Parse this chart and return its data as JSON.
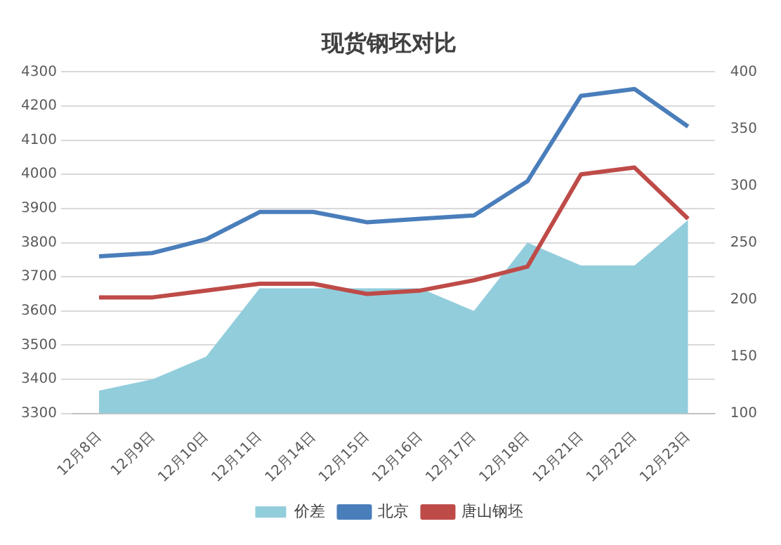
{
  "chart_data": {
    "type": "line",
    "title": "现货钢坯对比",
    "categories": [
      "12月8日",
      "12月9日",
      "12月10日",
      "12月11日",
      "12月14日",
      "12月15日",
      "12月16日",
      "12月17日",
      "12月18日",
      "12月21日",
      "12月22日",
      "12月23日"
    ],
    "series": [
      {
        "name": "价差",
        "type": "area",
        "axis": "y2",
        "color": "#92cddc",
        "values": [
          120,
          130,
          150,
          210,
          210,
          210,
          210,
          190,
          250,
          230,
          230,
          270
        ]
      },
      {
        "name": "北京",
        "color": "#4a7ebb",
        "values": [
          3760,
          3770,
          3810,
          3890,
          3890,
          3860,
          3870,
          3880,
          3980,
          4230,
          4250,
          4140
        ]
      },
      {
        "name": "唐山钢坯",
        "color": "#be4b48",
        "values": [
          3640,
          3640,
          3660,
          3680,
          3680,
          3650,
          3660,
          3690,
          3730,
          4000,
          4020,
          3870
        ]
      }
    ],
    "ylim": [
      3300,
      4300
    ],
    "yticks": [
      3300,
      3400,
      3500,
      3600,
      3700,
      3800,
      3900,
      4000,
      4100,
      4200,
      4300
    ],
    "y2lim": [
      100,
      400
    ],
    "y2ticks": [
      100,
      150,
      200,
      250,
      300,
      350,
      400
    ],
    "grid": "y",
    "legend": "bottom",
    "marker": "none"
  }
}
